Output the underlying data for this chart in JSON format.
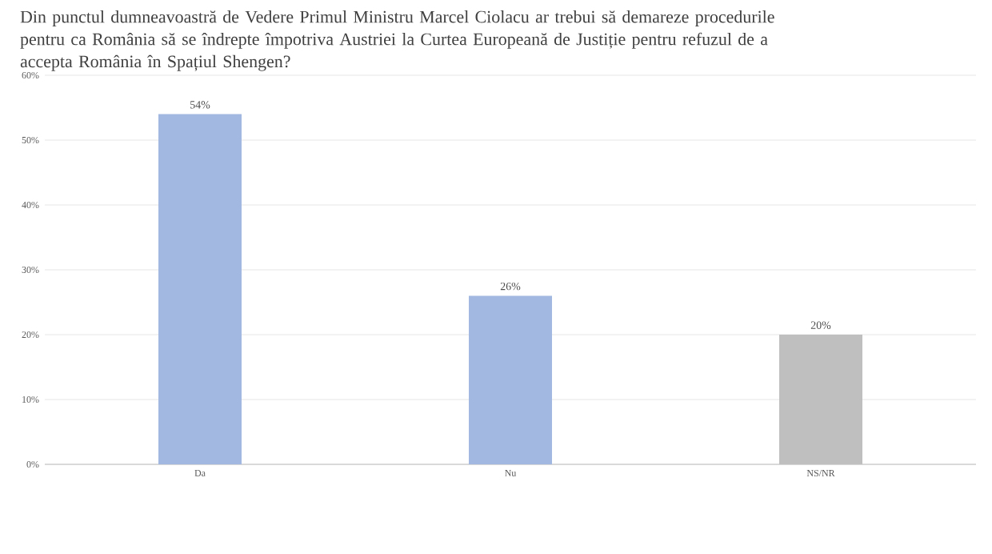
{
  "chart_data": {
    "type": "bar",
    "title": "Din punctul dumneavoastră de Vedere Primul Ministru Marcel Ciolacu ar trebui să demareze procedurile pentru ca România să se îndrepte împotriva Austriei la Curtea Europeană de Justiție pentru refuzul de a accepta România în Spațiul Shengen?",
    "categories": [
      "Da",
      "Nu",
      "NS/NR"
    ],
    "values": [
      54,
      26,
      20
    ],
    "colors": [
      "#a3b8e0",
      "#a3b8e0",
      "#bfbfbf"
    ],
    "value_labels": [
      "54%",
      "26%",
      "20%"
    ],
    "ylim": [
      0,
      60
    ],
    "yticks": [
      {
        "value": 0,
        "label": "0%"
      },
      {
        "value": 10,
        "label": "10%"
      },
      {
        "value": 20,
        "label": "20%"
      },
      {
        "value": 30,
        "label": "30%"
      },
      {
        "value": 40,
        "label": "40%"
      },
      {
        "value": 50,
        "label": "50%"
      },
      {
        "value": 60,
        "label": "60%"
      }
    ],
    "grid": "y"
  }
}
